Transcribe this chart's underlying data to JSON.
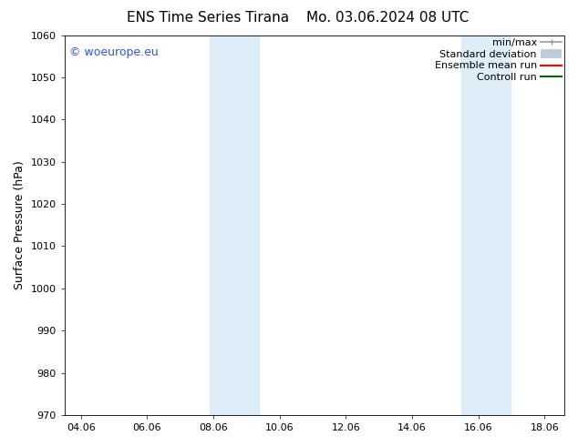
{
  "title_left": "ENS Time Series Tirana",
  "title_right": "Mo. 03.06.2024 08 UTC",
  "ylabel": "Surface Pressure (hPa)",
  "ylim": [
    970,
    1060
  ],
  "yticks": [
    970,
    980,
    990,
    1000,
    1010,
    1020,
    1030,
    1040,
    1050,
    1060
  ],
  "xlim_start": 3.5,
  "xlim_end": 18.6,
  "xtick_labels": [
    "04.06",
    "06.06",
    "08.06",
    "10.06",
    "12.06",
    "14.06",
    "16.06",
    "18.06"
  ],
  "xtick_positions": [
    4,
    6,
    8,
    10,
    12,
    14,
    16,
    18
  ],
  "shaded_bands": [
    {
      "x_start": 7.9,
      "x_end": 9.4
    },
    {
      "x_start": 15.5,
      "x_end": 17.0
    }
  ],
  "shaded_color": "#ddeef8",
  "background_color": "#ffffff",
  "watermark_text": "© woeurope.eu",
  "watermark_color": "#3355cc",
  "legend_entries": [
    {
      "label": "min/max",
      "color": "#999999",
      "lw": 1.2,
      "type": "minmax"
    },
    {
      "label": "Standard deviation",
      "color": "#bbccdd",
      "lw": 7,
      "type": "band"
    },
    {
      "label": "Ensemble mean run",
      "color": "#ff0000",
      "lw": 1.5,
      "type": "line"
    },
    {
      "label": "Controll run",
      "color": "#006600",
      "lw": 1.5,
      "type": "line"
    }
  ],
  "title_fontsize": 11,
  "ylabel_fontsize": 9,
  "tick_fontsize": 8,
  "watermark_fontsize": 9,
  "legend_fontsize": 8
}
